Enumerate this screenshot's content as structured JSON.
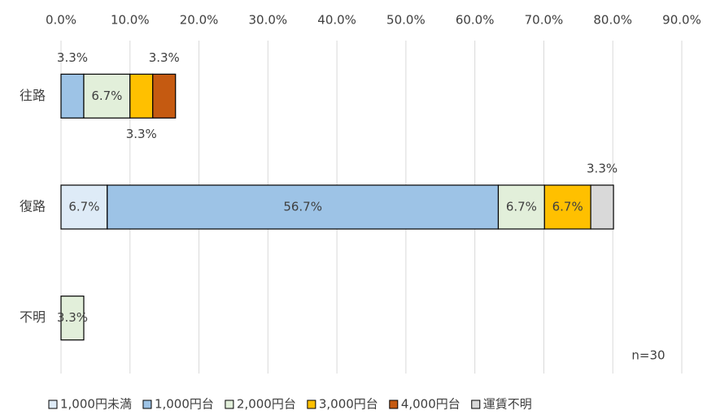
{
  "chart_data": {
    "type": "stacked-barh",
    "categories": [
      "往路",
      "復路",
      "不明"
    ],
    "series": [
      {
        "name": "1,000円未満",
        "color": "#deebf7",
        "values": [
          null,
          6.7,
          null
        ],
        "value_labels": [
          null,
          "6.7%",
          null
        ]
      },
      {
        "name": "1,000円台",
        "color": "#9dc3e6",
        "values": [
          3.3,
          56.7,
          null
        ],
        "value_labels": [
          "3.3%",
          "56.7%",
          null
        ]
      },
      {
        "name": "2,000円台",
        "color": "#e2efda",
        "values": [
          6.7,
          6.7,
          3.3
        ],
        "value_labels": [
          "6.7%",
          "6.7%",
          "3.3%"
        ]
      },
      {
        "name": "3,000円台",
        "color": "#ffc000",
        "values": [
          3.3,
          6.7,
          null
        ],
        "value_labels": [
          "3.3%",
          "6.7%",
          null
        ]
      },
      {
        "name": "4,000円台",
        "color": "#c55a11",
        "values": [
          3.3,
          null,
          null
        ],
        "value_labels": [
          "3.3%",
          null,
          null
        ]
      },
      {
        "name": "運賃不明",
        "color": "#d9d9d9",
        "values": [
          null,
          3.3,
          null
        ],
        "value_labels": [
          null,
          "3.3%",
          null
        ]
      }
    ],
    "xlim": [
      0,
      90
    ],
    "xticks": [
      {
        "value": 0,
        "label": "0.0%"
      },
      {
        "value": 10,
        "label": "10.0%"
      },
      {
        "value": 20,
        "label": "20.0%"
      },
      {
        "value": 30,
        "label": "30.0%"
      },
      {
        "value": 40,
        "label": "40.0%"
      },
      {
        "value": 50,
        "label": "50.0%"
      },
      {
        "value": 60,
        "label": "60.0%"
      },
      {
        "value": 70,
        "label": "70.0%"
      },
      {
        "value": 80,
        "label": "80.0%"
      },
      {
        "value": 90,
        "label": "90.0%"
      }
    ],
    "grid": true,
    "legend": "bottom",
    "annotation": "n=30"
  }
}
